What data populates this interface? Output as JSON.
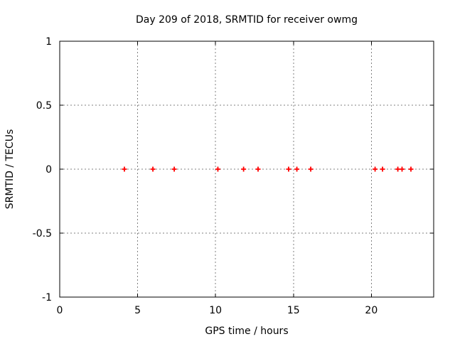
{
  "chart_data": {
    "type": "scatter",
    "title": "Day 209 of 2018, SRMTID for receiver owmg",
    "xlabel": "GPS time / hours",
    "ylabel": "SRMTID / TECUs",
    "xlim": [
      0,
      24
    ],
    "ylim": [
      -1,
      1
    ],
    "xticks": [
      0,
      5,
      10,
      15,
      20
    ],
    "xtick_labels": [
      "0",
      "5",
      "10",
      "15",
      "20"
    ],
    "yticks": [
      -1,
      -0.5,
      0,
      0.5,
      1
    ],
    "ytick_labels": [
      "-1",
      "-0.5",
      "0",
      "0.5",
      "1"
    ],
    "grid": true,
    "legend": "none",
    "marker": "plus",
    "series": [
      {
        "name": "SRMTID",
        "color": "#ff0000",
        "x": [
          4.15,
          5.98,
          7.35,
          10.15,
          11.8,
          12.73,
          14.69,
          15.22,
          16.11,
          20.24,
          20.72,
          21.7,
          21.97,
          22.54
        ],
        "y": [
          0,
          0,
          0,
          0,
          0,
          0,
          0,
          0,
          0,
          0,
          0,
          0,
          0,
          0
        ]
      }
    ],
    "colors": {
      "background": "#ffffff",
      "frame": "#000000",
      "grid": "#808080",
      "text": "#000000"
    }
  }
}
